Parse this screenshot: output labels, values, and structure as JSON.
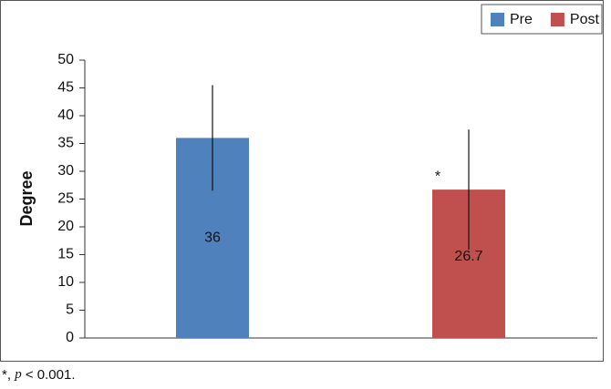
{
  "chart_data": {
    "type": "bar",
    "categories": [
      null
    ],
    "series": [
      {
        "name": "Pre",
        "color": "#4f81bd",
        "values": [
          36
        ],
        "errors": [
          9.5
        ]
      },
      {
        "name": "Post",
        "color": "#c0504d",
        "values": [
          26.7
        ],
        "errors": [
          10.8
        ]
      }
    ],
    "ylabel": "Degree",
    "ylim": [
      0,
      50
    ],
    "yticks": [
      0,
      5,
      10,
      15,
      20,
      25,
      30,
      35,
      40,
      45,
      50
    ],
    "annotations": [
      "*"
    ],
    "footnote": [
      "*, ",
      "p",
      " < 0.001."
    ],
    "legend": "top-right"
  }
}
